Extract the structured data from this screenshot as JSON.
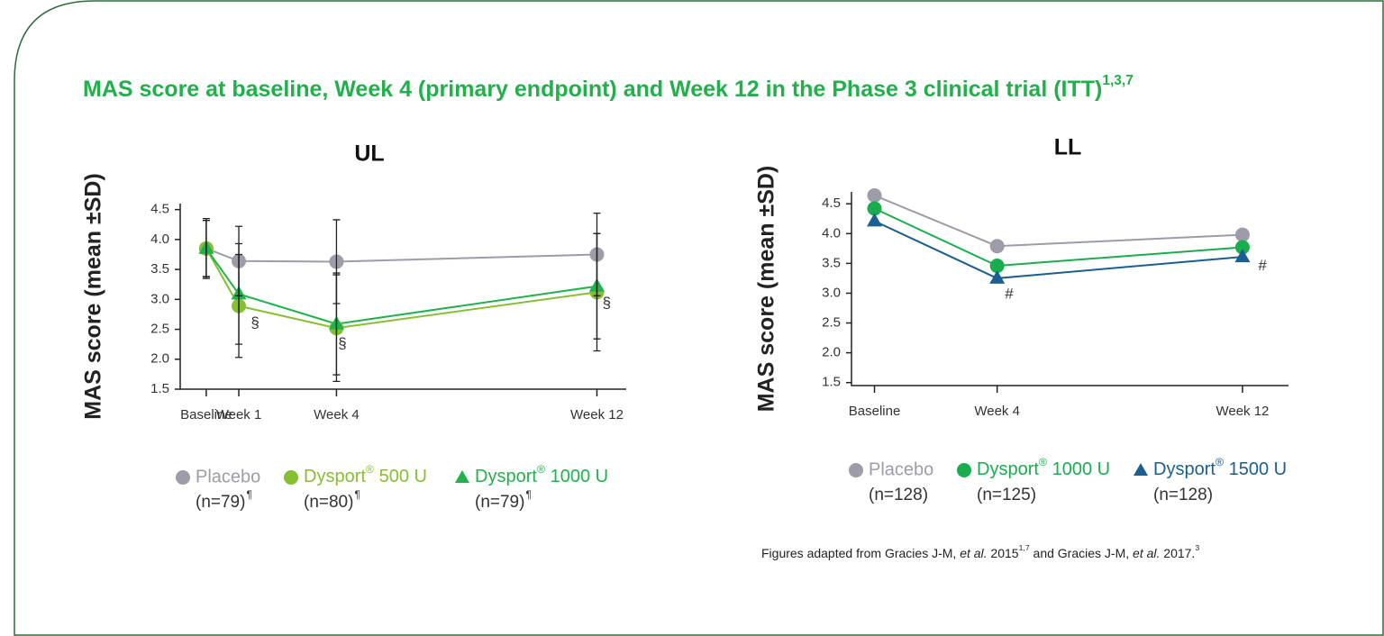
{
  "title": "MAS score at baseline, Week 4 (primary endpoint) and Week 12 in the Phase 3 clinical trial (ITT)",
  "title_refs": "1,3,7",
  "source": [
    "Figures adapted from Gracies J-M, ",
    "et al.",
    " 2015",
    "1,7",
    " and Gracies J-M, ",
    "et al.",
    " 2017.",
    "3"
  ],
  "chart_data": [
    {
      "type": "line",
      "title": "UL",
      "y_label": "MAS score (mean ±SD)",
      "x": [
        0,
        1,
        4,
        12
      ],
      "xlim": [
        -0.8,
        12.9
      ],
      "xticks": [
        {
          "value": 0,
          "label": "Baseline"
        },
        {
          "value": 1,
          "label": "Week 1"
        },
        {
          "value": 4,
          "label": "Week 4"
        },
        {
          "value": 12,
          "label": "Week 12"
        }
      ],
      "ylim": [
        1.5,
        4.6
      ],
      "yticks": [
        1.5,
        {
          "value": 2,
          "label": "2.0"
        },
        2.5,
        {
          "value": 3,
          "label": "3.0"
        },
        3.5,
        {
          "value": 4,
          "label": "4.0"
        },
        4.5
      ],
      "series": [
        {
          "name": "Placebo",
          "n_label": "(n=79)",
          "n_note": "¶",
          "color": "#9d9ca8",
          "marker": "circle",
          "values": [
            3.85,
            3.64,
            3.63,
            3.75
          ],
          "errors": [
            0.5,
            0.58,
            0.7,
            0.69
          ]
        },
        {
          "name": "Dysport® 500 U",
          "n_label": "(n=80)",
          "n_note": "¶",
          "color": "#86bf2f",
          "marker": "circle",
          "values": [
            3.85,
            2.89,
            2.52,
            3.12
          ],
          "errors": [
            0.47,
            0.86,
            0.89,
            0.98
          ]
        },
        {
          "name": "Dysport® 1000 U",
          "n_label": "(n=79)",
          "n_note": "¶",
          "color": "#1fb24d",
          "marker": "triangle",
          "values": [
            3.85,
            3.09,
            2.59,
            3.22
          ],
          "errors": [
            0.47,
            0.84,
            0.85,
            0.88
          ]
        }
      ],
      "annotations": [
        {
          "text": "§",
          "x": 1.5,
          "y": 2.6
        },
        {
          "text": "§",
          "x": 4.18,
          "y": 2.25
        },
        {
          "text": "§",
          "x": 12.3,
          "y": 2.93
        }
      ]
    },
    {
      "type": "line",
      "title": "LL",
      "y_label": "MAS score (mean ±SD)",
      "x": [
        0,
        4,
        12
      ],
      "xlim": [
        -0.75,
        13.5
      ],
      "xticks": [
        {
          "value": 0,
          "label": "Baseline"
        },
        {
          "value": 4,
          "label": "Week 4"
        },
        {
          "value": 12,
          "label": "Week 12"
        }
      ],
      "ylim": [
        1.45,
        4.7
      ],
      "yticks": [
        1.5,
        {
          "value": 2,
          "label": "2.0"
        },
        2.5,
        {
          "value": 3,
          "label": "3.0"
        },
        3.5,
        {
          "value": 4,
          "label": "4.0"
        },
        4.5
      ],
      "series": [
        {
          "name": "Placebo",
          "n_label": "(n=128)",
          "color": "#9d9ca8",
          "marker": "circle",
          "values": [
            4.64,
            3.79,
            3.98
          ]
        },
        {
          "name": "Dysport® 1000 U",
          "n_label": "(n=125)",
          "color": "#19ad4e",
          "marker": "circle",
          "values": [
            4.42,
            3.46,
            3.77
          ]
        },
        {
          "name": "Dysport® 1500 U",
          "n_label": "(n=128)",
          "color": "#1b5e8f",
          "marker": "triangle",
          "values": [
            4.21,
            3.25,
            3.61
          ]
        }
      ],
      "annotations": [
        {
          "text": "#",
          "x": 4.39,
          "y": 2.98
        },
        {
          "text": "#",
          "x": 12.65,
          "y": 3.45
        }
      ]
    }
  ]
}
